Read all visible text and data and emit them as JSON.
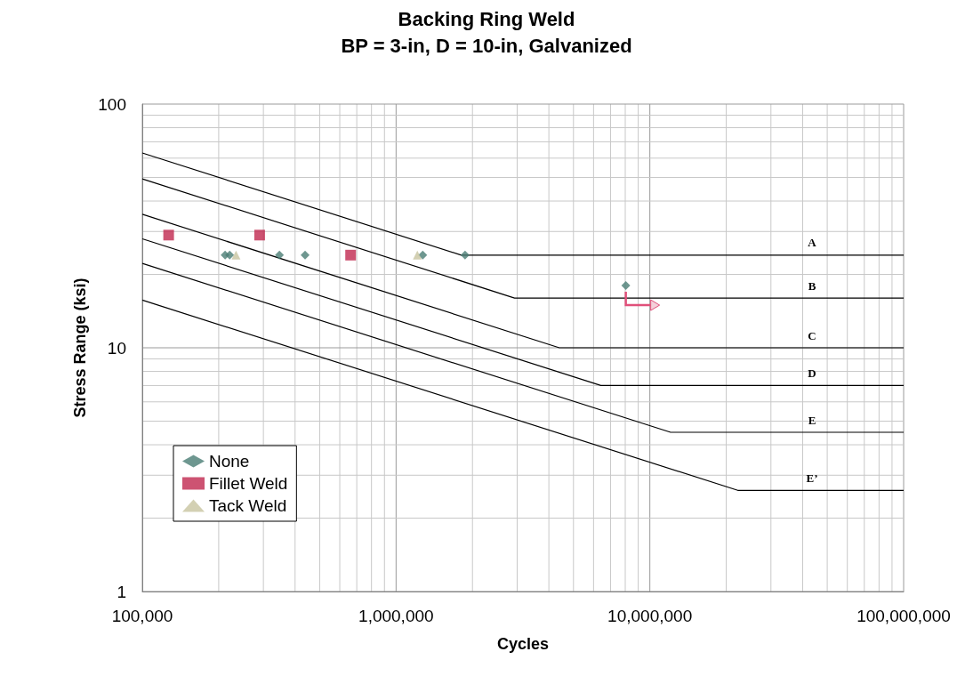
{
  "chart_data": {
    "type": "scatter",
    "title": "Backing Ring Weld",
    "subtitle": "BP = 3-in, D = 10-in, Galvanized",
    "xlabel": "Cycles",
    "ylabel": "Stress Range (ksi)",
    "log": "xy",
    "grid": true,
    "legend": "bottom left",
    "xlim": [
      100000,
      100000000
    ],
    "ylim": [
      1,
      100
    ],
    "xticks": [
      {
        "value": 100000,
        "label": "100,000"
      },
      {
        "value": 1000000,
        "label": "1,000,000"
      },
      {
        "value": 10000000,
        "label": "10,000,000"
      },
      {
        "value": 100000000,
        "label": "100,000,000"
      }
    ],
    "yticks": [
      1,
      10,
      100
    ],
    "series": [
      {
        "name": "None",
        "color": "#4a7d74",
        "marker": "diamond",
        "x": [
          212000,
          221000,
          347000,
          438000,
          1274000,
          1870000,
          8040000
        ],
        "values": [
          24,
          24,
          24,
          24,
          24,
          24,
          18
        ]
      },
      {
        "name": "Fillet Weld",
        "color": "#c0284f",
        "marker": "square",
        "x": [
          127000,
          290000,
          662000
        ],
        "values": [
          29,
          29,
          24
        ]
      },
      {
        "name": "Tack Weld",
        "color": "#c8c4a0",
        "marker": "triangle",
        "x": [
          234000,
          1213000
        ],
        "values": [
          24,
          24
        ]
      },
      {
        "name": "A",
        "type": "line",
        "color": "#000000",
        "marker": "none",
        "x": [
          100000,
          1808000,
          100000000
        ],
        "values": [
          63,
          24,
          24
        ]
      },
      {
        "name": "B",
        "type": "line",
        "color": "#000000",
        "marker": "none",
        "x": [
          100000,
          2930000,
          100000000
        ],
        "values": [
          49.3,
          16,
          16
        ]
      },
      {
        "name": "C",
        "type": "line",
        "color": "#000000",
        "marker": "none",
        "x": [
          100000,
          4400000,
          100000000
        ],
        "values": [
          35.3,
          10,
          10
        ]
      },
      {
        "name": "D",
        "type": "line",
        "color": "#000000",
        "marker": "none",
        "x": [
          100000,
          6410000,
          100000000
        ],
        "values": [
          28,
          7,
          7
        ]
      },
      {
        "name": "E",
        "type": "line",
        "color": "#000000",
        "marker": "none",
        "x": [
          100000,
          12070000,
          100000000
        ],
        "values": [
          22.2,
          4.5,
          4.5
        ]
      },
      {
        "name": "E’",
        "type": "line",
        "color": "#000000",
        "marker": "none",
        "x": [
          100000,
          22200000,
          100000000
        ],
        "values": [
          15.7,
          2.6,
          2.6
        ]
      }
    ]
  }
}
